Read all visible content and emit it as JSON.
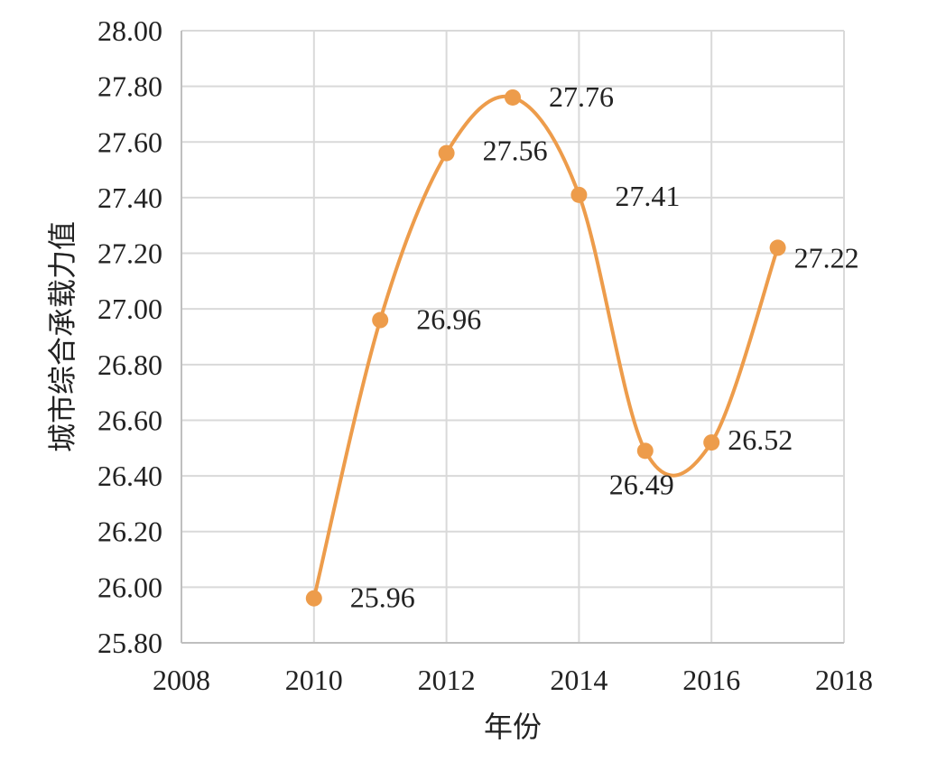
{
  "chart_data": {
    "type": "line",
    "smooth": true,
    "title": "",
    "xlabel": "年份",
    "ylabel": "城市综合承载力值",
    "xlim": [
      2008,
      2018
    ],
    "ylim": [
      25.8,
      28.0
    ],
    "x_ticks": [
      "2008",
      "2010",
      "2012",
      "2014",
      "2016",
      "2018"
    ],
    "y_ticks": [
      "25.80",
      "26.00",
      "26.20",
      "26.40",
      "26.60",
      "26.80",
      "27.00",
      "27.20",
      "27.40",
      "27.60",
      "27.80",
      "28.00"
    ],
    "grid": true,
    "legend": "none",
    "series": [
      {
        "color": "#ED9C4B",
        "x": [
          2010,
          2011,
          2012,
          2013,
          2014,
          2015,
          2016,
          2017
        ],
        "y": [
          25.96,
          26.96,
          27.56,
          27.76,
          27.41,
          26.49,
          26.52,
          27.22
        ],
        "labels": [
          "25.96",
          "26.96",
          "27.56",
          "27.76",
          "27.41",
          "26.49",
          "26.52",
          "27.22"
        ]
      }
    ]
  }
}
